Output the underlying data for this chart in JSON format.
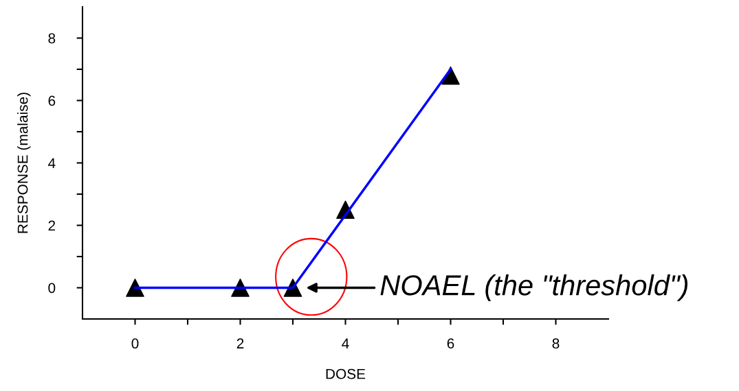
{
  "chart_data": {
    "type": "scatter",
    "xlabel": "DOSE",
    "ylabel": "RESPONSE (malaise)",
    "x": [
      0,
      2,
      3,
      4,
      6
    ],
    "series": [
      {
        "color": "#000000",
        "marker": "triangle",
        "values": [
          0,
          0,
          0,
          2.5,
          6.8
        ]
      },
      {
        "type": "line",
        "color": "#0000ff",
        "marker": "none",
        "line_style": "solid",
        "x": [
          0,
          3,
          6
        ],
        "values": [
          0,
          0,
          7
        ]
      }
    ],
    "xlim": [
      -1,
      9
    ],
    "ylim": [
      -1,
      9
    ],
    "xticks": [
      0,
      {
        "value": 1,
        "label": null
      },
      2,
      {
        "value": 3,
        "label": null
      },
      4,
      {
        "value": 5,
        "label": null
      },
      6,
      {
        "value": 7,
        "label": null
      },
      8
    ],
    "yticks": [
      0,
      {
        "value": 1,
        "label": null
      },
      2,
      {
        "value": 3,
        "label": null
      },
      4,
      {
        "value": 5,
        "label": null
      },
      6,
      {
        "value": 7,
        "label": null
      },
      8
    ],
    "annotations": [
      "NOAEL (the \"threshold\")"
    ],
    "grid": false,
    "legend": false
  }
}
